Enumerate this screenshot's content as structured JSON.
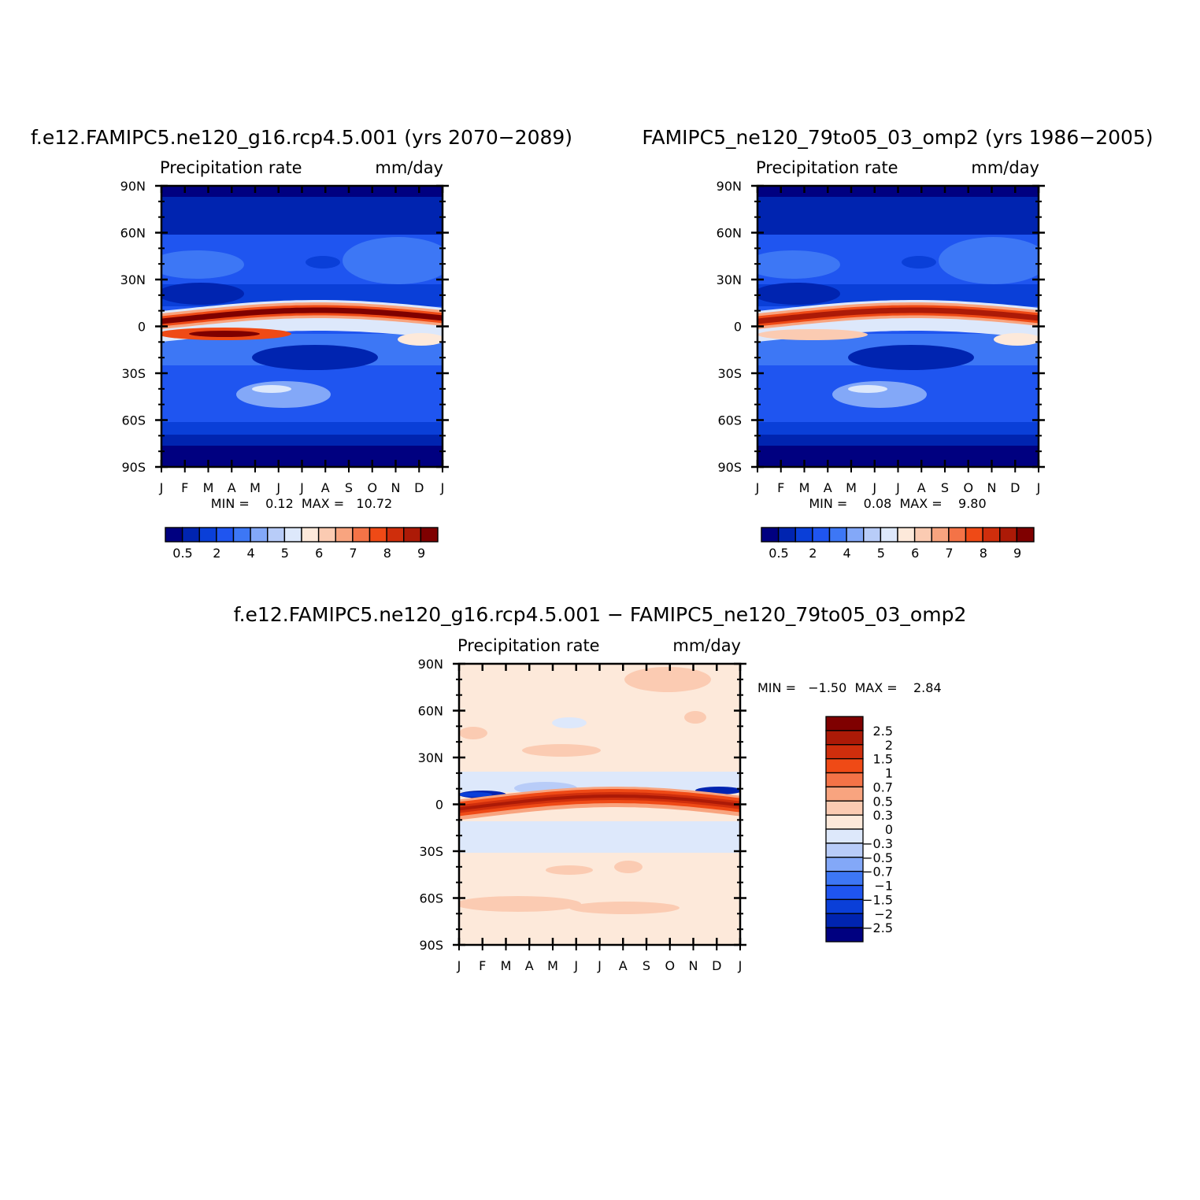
{
  "panel_unit": "mm/day",
  "months": [
    "J",
    "F",
    "M",
    "A",
    "M",
    "J",
    "J",
    "A",
    "S",
    "O",
    "N",
    "D",
    "J"
  ],
  "lat_labels": [
    "90N",
    "60N",
    "30N",
    "0",
    "30S",
    "60S",
    "90S"
  ],
  "palette": {
    "abs_fill": [
      "#000080",
      "#0024b0",
      "#0a3fd8",
      "#1f55f0",
      "#3d77f5",
      "#83a8f8",
      "#b8ccf8",
      "#dde8fb",
      "#fde9da",
      "#fbcbb2",
      "#f8a47f",
      "#f47347",
      "#ef4a16",
      "#cf2e0c",
      "#ac1a07",
      "#7f0000"
    ],
    "abs_ramp": [
      "#000080",
      "#0a2fbf",
      "#1f55f0",
      "#3d77f5",
      "#b8ccf8",
      "#fde9da",
      "#f8a47f",
      "#ef4a16",
      "#ac1a07",
      "#7f0000"
    ],
    "diff_fill": [
      "#000080",
      "#0024b0",
      "#0a3fd8",
      "#1f55f0",
      "#3d77f5",
      "#83a8f8",
      "#b8ccf8",
      "#dde8fb",
      "#fde9da",
      "#fbcbb2",
      "#f8a47f",
      "#f47347",
      "#ef4a16",
      "#cf2e0c",
      "#ac1a07",
      "#7f0000"
    ],
    "diff_bg": "#fde9da"
  },
  "chart_data": [
    {
      "type": "heatmap",
      "title": "f.e12.FAMIPC5.ne120_g16.rcp4.5.001 (yrs 2070−2089)",
      "left_label": "Precipitation rate",
      "right_label": "mm/day",
      "stats": "MIN =    0.12  MAX =   10.72",
      "min": 0.12,
      "max": 10.72,
      "xlim": [
        0,
        12
      ],
      "ylim": [
        -90,
        90
      ],
      "colorbar_labels": [
        "0.5",
        "2",
        "4",
        "5",
        "6",
        "7",
        "8",
        "9"
      ]
    },
    {
      "type": "heatmap",
      "title": "FAMIPC5_ne120_79to05_03_omp2 (yrs 1986−2005)",
      "left_label": "Precipitation rate",
      "right_label": "mm/day",
      "stats": "MIN =    0.08  MAX =    9.80",
      "min": 0.08,
      "max": 9.8,
      "xlim": [
        0,
        12
      ],
      "ylim": [
        -90,
        90
      ],
      "colorbar_labels": [
        "0.5",
        "2",
        "4",
        "5",
        "6",
        "7",
        "8",
        "9"
      ]
    },
    {
      "type": "heatmap",
      "title": "f.e12.FAMIPC5.ne120_g16.rcp4.5.001 − FAMIPC5_ne120_79to05_03_omp2",
      "left_label": "Precipitation rate",
      "right_label": "mm/day",
      "stats": "MIN =   −1.50  MAX =    2.84",
      "min": -1.5,
      "max": 2.84,
      "xlim": [
        0,
        12
      ],
      "ylim": [
        -90,
        90
      ],
      "colorbar_labels": [
        "2.5",
        "2",
        "1.5",
        "1",
        "0.7",
        "0.5",
        "0.3",
        "0",
        "−0.3",
        "−0.5",
        "−0.7",
        "−1",
        "−1.5",
        "−2",
        "−2.5"
      ]
    }
  ]
}
